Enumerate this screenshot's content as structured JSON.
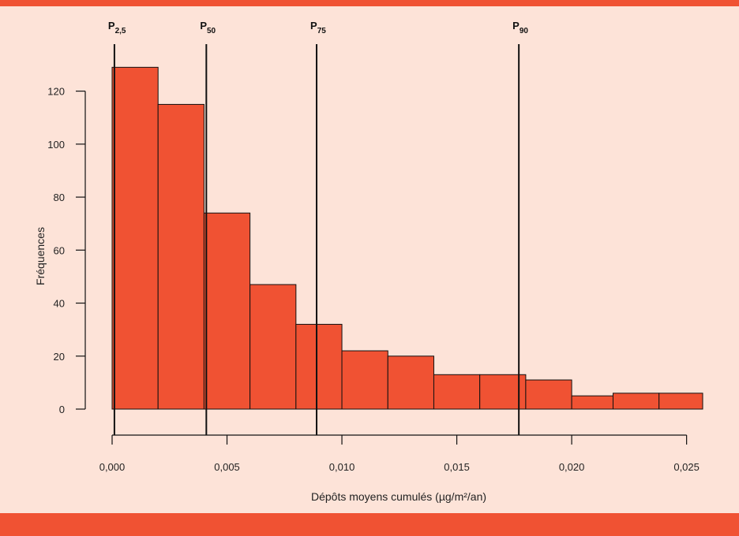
{
  "colors": {
    "background": "#fde3d8",
    "bar_fill": "#f05233",
    "band": "#f05233"
  },
  "chart_data": {
    "type": "bar",
    "title": "",
    "xlabel": "Dépôts moyens cumulés (µg/m²/an)",
    "ylabel": "Fréquences",
    "xlim": [
      0,
      0.0257
    ],
    "ylim": [
      0,
      130
    ],
    "x_ticks": [
      0,
      0.005,
      0.01,
      0.015,
      0.02,
      0.025
    ],
    "x_tick_labels": [
      "0,000",
      "0,005",
      "0,010",
      "0,015",
      "0,020",
      "0,025"
    ],
    "y_ticks": [
      0,
      20,
      40,
      60,
      80,
      100,
      120
    ],
    "y_tick_labels": [
      "0",
      "20",
      "40",
      "60",
      "80",
      "100",
      "120"
    ],
    "bins": [
      {
        "start": 0.0,
        "end": 0.002,
        "count": 129
      },
      {
        "start": 0.002,
        "end": 0.004,
        "count": 115
      },
      {
        "start": 0.004,
        "end": 0.006,
        "count": 74
      },
      {
        "start": 0.006,
        "end": 0.008,
        "count": 47
      },
      {
        "start": 0.008,
        "end": 0.01,
        "count": 32
      },
      {
        "start": 0.01,
        "end": 0.012,
        "count": 22
      },
      {
        "start": 0.012,
        "end": 0.014,
        "count": 20
      },
      {
        "start": 0.014,
        "end": 0.016,
        "count": 13
      },
      {
        "start": 0.016,
        "end": 0.018,
        "count": 13
      },
      {
        "start": 0.018,
        "end": 0.02,
        "count": 11
      },
      {
        "start": 0.02,
        "end": 0.0218,
        "count": 5
      },
      {
        "start": 0.0218,
        "end": 0.0238,
        "count": 6
      },
      {
        "start": 0.0238,
        "end": 0.0257,
        "count": 6
      }
    ],
    "percentiles": [
      {
        "main": "P",
        "sub": "2,5",
        "value": 0.0001
      },
      {
        "main": "P",
        "sub": "50",
        "value": 0.0041
      },
      {
        "main": "P",
        "sub": "75",
        "value": 0.0089
      },
      {
        "main": "P",
        "sub": "90",
        "value": 0.0177
      }
    ]
  }
}
